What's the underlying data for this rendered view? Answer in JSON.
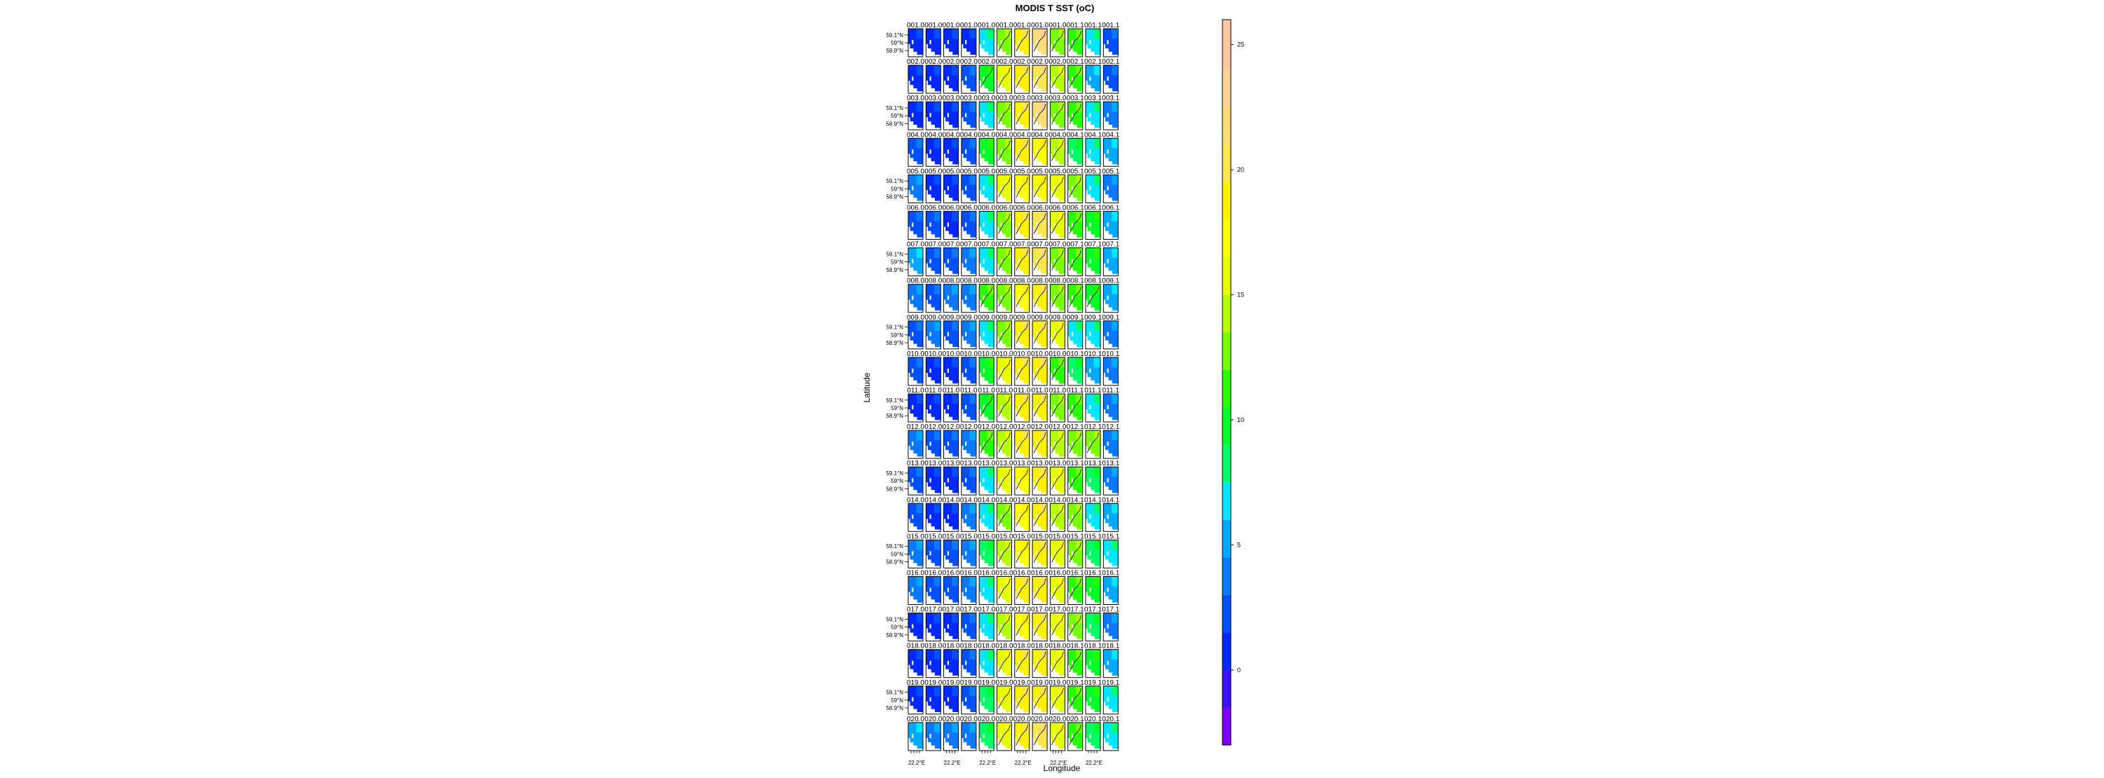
{
  "chart_data": {
    "type": "heatmap",
    "title": "MODIS T SST (oC)",
    "xlabel": "Longitude",
    "ylabel": "Latitude",
    "lat_ticks": [
      "59.1°N",
      "59°N",
      "58.9°N"
    ],
    "lon_tick": "22.2°E",
    "colorbar": {
      "min": -3,
      "max": 26,
      "ticks": [
        0,
        5,
        10,
        15,
        20,
        25
      ],
      "levels": [
        {
          "from": -3,
          "to": -1.5,
          "color": "#7d00ff"
        },
        {
          "from": -1.5,
          "to": 0,
          "color": "#3c10ff"
        },
        {
          "from": 0,
          "to": 1.5,
          "color": "#0028ff"
        },
        {
          "from": 1.5,
          "to": 3,
          "color": "#0050ff"
        },
        {
          "from": 3,
          "to": 4.5,
          "color": "#0a78ff"
        },
        {
          "from": 4.5,
          "to": 6,
          "color": "#00a8ff"
        },
        {
          "from": 6,
          "to": 7.5,
          "color": "#00e6ff"
        },
        {
          "from": 7.5,
          "to": 9,
          "color": "#00ff64"
        },
        {
          "from": 9,
          "to": 10.5,
          "color": "#00ff28"
        },
        {
          "from": 10.5,
          "to": 12,
          "color": "#28ff00"
        },
        {
          "from": 12,
          "to": 13.5,
          "color": "#78ff00"
        },
        {
          "from": 13.5,
          "to": 15,
          "color": "#b4ff00"
        },
        {
          "from": 15,
          "to": 16.5,
          "color": "#e6ff00"
        },
        {
          "from": 16.5,
          "to": 18,
          "color": "#ffff00"
        },
        {
          "from": 18,
          "to": 19.5,
          "color": "#fff000"
        },
        {
          "from": 19.5,
          "to": 21,
          "color": "#ffe650"
        },
        {
          "from": 21,
          "to": 22.5,
          "color": "#ffdc78"
        },
        {
          "from": 22.5,
          "to": 24,
          "color": "#ffd296"
        },
        {
          "from": 24,
          "to": 26,
          "color": "#ffc8a0"
        }
      ]
    },
    "column_suffixes": [
      "0",
      "0",
      "0",
      "0",
      "0",
      "0",
      "0",
      "0",
      "0",
      "1",
      "1",
      "1"
    ],
    "panel_sst": [
      [
        1.0,
        0.5,
        0.5,
        1.0,
        7.0,
        12.0,
        19.0,
        21.0,
        13.0,
        11.0,
        7.0,
        2.0
      ],
      [
        1.0,
        0.5,
        0.5,
        1.5,
        10.0,
        15.0,
        19.0,
        20.0,
        14.0,
        11.0,
        5.0,
        2.0
      ],
      [
        1.0,
        0.5,
        0.5,
        1.5,
        6.0,
        12.0,
        19.0,
        21.0,
        12.0,
        11.0,
        6.5,
        4.0
      ],
      [
        2.0,
        1.0,
        1.0,
        2.0,
        9.0,
        12.0,
        18.0,
        17.0,
        14.0,
        7.5,
        7.0,
        5.0
      ],
      [
        3.0,
        1.0,
        1.0,
        2.0,
        7.0,
        15.0,
        17.0,
        17.0,
        15.0,
        13.0,
        7.0,
        3.0
      ],
      [
        2.0,
        1.5,
        1.0,
        1.5,
        6.0,
        12.0,
        19.0,
        20.0,
        15.0,
        11.0,
        9.0,
        5.0
      ],
      [
        5.0,
        2.0,
        2.0,
        3.0,
        6.0,
        12.0,
        19.0,
        20.0,
        13.0,
        11.0,
        9.0,
        5.0
      ],
      [
        3.0,
        2.0,
        3.0,
        4.0,
        11.0,
        12.0,
        17.0,
        19.0,
        12.0,
        11.0,
        10.0,
        5.0
      ],
      [
        2.0,
        3.0,
        2.0,
        3.0,
        7.0,
        12.0,
        18.0,
        19.0,
        15.0,
        7.0,
        7.0,
        4.0
      ],
      [
        2.0,
        0.5,
        1.0,
        2.0,
        9.0,
        15.0,
        18.0,
        19.0,
        11.0,
        8.0,
        5.0,
        4.0
      ],
      [
        0.5,
        1.0,
        1.0,
        2.0,
        10.0,
        14.0,
        19.0,
        19.0,
        13.0,
        11.0,
        7.0,
        3.0
      ],
      [
        3.0,
        2.0,
        2.0,
        4.0,
        11.0,
        14.0,
        18.0,
        19.0,
        14.0,
        13.0,
        12.0,
        4.0
      ],
      [
        2.0,
        1.0,
        1.0,
        2.0,
        6.0,
        15.0,
        17.0,
        18.0,
        16.0,
        11.0,
        8.0,
        4.0
      ],
      [
        2.0,
        1.0,
        1.0,
        3.0,
        7.0,
        13.0,
        17.0,
        18.0,
        14.0,
        13.0,
        7.0,
        5.0
      ],
      [
        3.0,
        2.0,
        2.0,
        3.0,
        8.0,
        14.0,
        17.0,
        18.0,
        15.0,
        13.0,
        8.0,
        6.0
      ],
      [
        3.0,
        2.0,
        2.0,
        3.0,
        7.0,
        15.0,
        18.0,
        18.0,
        15.0,
        11.0,
        9.0,
        5.0
      ],
      [
        1.0,
        1.0,
        1.0,
        2.0,
        7.0,
        14.0,
        17.0,
        18.0,
        15.0,
        12.0,
        8.0,
        4.0
      ],
      [
        1.0,
        1.0,
        1.0,
        2.0,
        7.0,
        15.0,
        18.0,
        18.0,
        15.0,
        11.0,
        9.0,
        5.0
      ],
      [
        1.0,
        1.0,
        1.0,
        2.0,
        8.0,
        16.0,
        18.0,
        19.0,
        15.0,
        11.0,
        9.0,
        6.0
      ],
      [
        5.0,
        3.0,
        3.0,
        4.0,
        8.0,
        15.0,
        19.0,
        20.0,
        15.0,
        11.0,
        8.0,
        6.0
      ]
    ]
  }
}
